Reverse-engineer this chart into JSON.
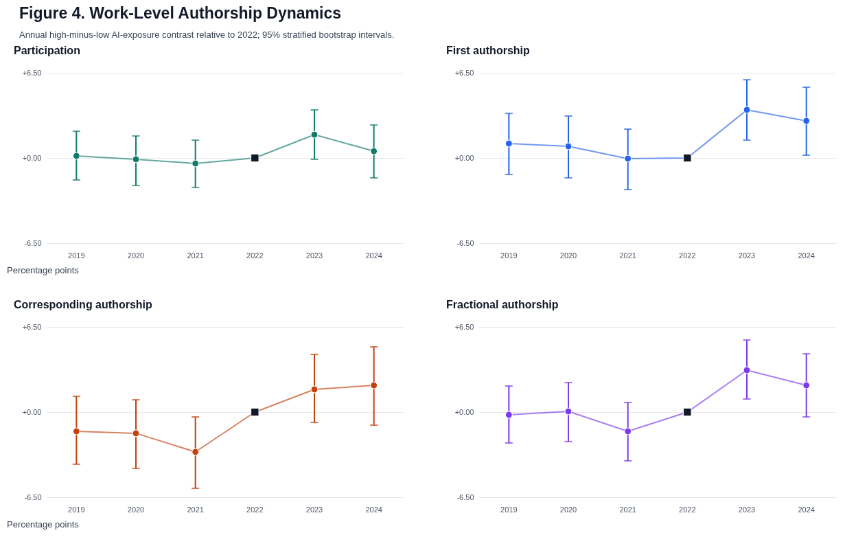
{
  "chart_data": [
    {
      "type": "line",
      "title": "Participation",
      "ylabel": "Percentage points",
      "annotations": [
        "Figure 4. Work-Level Authorship Dynamics",
        "Annual high-minus-low AI-exposure contrast relative to 2022; 95% stratified bootstrap intervals."
      ],
      "categories": [
        "2019",
        "2020",
        "2021",
        "2022",
        "2023",
        "2024"
      ],
      "ylim": [
        -6.5,
        6.5
      ],
      "yticks": [
        {
          "value": 6.5,
          "label": "+6.50"
        },
        {
          "value": 0,
          "label": "+0.00"
        },
        {
          "value": -6.5,
          "label": "-6.50"
        }
      ],
      "grid": "y",
      "marker": "circle",
      "series": [
        {
          "color": "#127a6b",
          "values": [
            0.16,
            -0.1,
            -0.42,
            0,
            1.78,
            0.52
          ],
          "errors": [
            [
              -1.68,
              2.04
            ],
            [
              -2.1,
              1.68
            ],
            [
              -2.25,
              1.36
            ],
            null,
            [
              -0.1,
              3.67
            ],
            [
              -1.52,
              2.52
            ]
          ]
        },
        {
          "type": "scatter",
          "marker": "square",
          "color": "#111827",
          "values": [
            null,
            null,
            null,
            0,
            null,
            null
          ]
        }
      ]
    },
    {
      "type": "line",
      "title": "First authorship",
      "categories": [
        "2019",
        "2020",
        "2021",
        "2022",
        "2023",
        "2024"
      ],
      "ylim": [
        -6.5,
        6.5
      ],
      "yticks": [
        {
          "value": 6.5,
          "label": "+6.50"
        },
        {
          "value": 0,
          "label": "+0.00"
        },
        {
          "value": -6.5,
          "label": "-6.50"
        }
      ],
      "grid": "y",
      "marker": "circle",
      "series": [
        {
          "color": "#2563eb",
          "values": [
            1.1,
            0.89,
            -0.05,
            0,
            3.67,
            2.83
          ],
          "errors": [
            [
              -1.26,
              3.4
            ],
            [
              -1.52,
              3.2
            ],
            [
              -2.41,
              2.2
            ],
            null,
            [
              1.36,
              5.97
            ],
            [
              0.21,
              5.4
            ]
          ]
        },
        {
          "type": "scatter",
          "marker": "square",
          "color": "#111827",
          "values": [
            null,
            null,
            null,
            0,
            null,
            null
          ]
        }
      ]
    },
    {
      "type": "line",
      "title": "Corresponding authorship",
      "ylabel": "Percentage points",
      "categories": [
        "2019",
        "2020",
        "2021",
        "2022",
        "2023",
        "2024"
      ],
      "ylim": [
        -6.5,
        6.5
      ],
      "yticks": [
        {
          "value": 6.5,
          "label": "+6.50"
        },
        {
          "value": 0,
          "label": "+0.00"
        },
        {
          "value": -6.5,
          "label": "-6.50"
        }
      ],
      "grid": "y",
      "marker": "circle",
      "series": [
        {
          "color": "#c2410c",
          "values": [
            -1.47,
            -1.62,
            -3.04,
            0,
            1.73,
            2.04
          ],
          "errors": [
            [
              -3.98,
              1.2
            ],
            [
              -4.3,
              0.94
            ],
            [
              -5.82,
              -0.37
            ],
            null,
            [
              -0.79,
              4.4
            ],
            [
              -1.0,
              4.98
            ]
          ]
        },
        {
          "type": "scatter",
          "marker": "square",
          "color": "#111827",
          "values": [
            null,
            null,
            null,
            0,
            null,
            null
          ]
        }
      ]
    },
    {
      "type": "line",
      "title": "Fractional authorship",
      "categories": [
        "2019",
        "2020",
        "2021",
        "2022",
        "2023",
        "2024"
      ],
      "ylim": [
        -6.5,
        6.5
      ],
      "yticks": [
        {
          "value": 6.5,
          "label": "+6.50"
        },
        {
          "value": 0,
          "label": "+0.00"
        },
        {
          "value": -6.5,
          "label": "-6.50"
        }
      ],
      "grid": "y",
      "marker": "circle",
      "series": [
        {
          "color": "#7c3aed",
          "values": [
            -0.21,
            0.05,
            -1.47,
            0,
            3.2,
            2.04
          ],
          "errors": [
            [
              -2.36,
              1.99
            ],
            [
              -2.25,
              2.25
            ],
            [
              -3.72,
              0.73
            ],
            null,
            [
              1.0,
              5.5
            ],
            [
              -0.37,
              4.45
            ]
          ]
        },
        {
          "type": "scatter",
          "marker": "square",
          "color": "#111827",
          "values": [
            null,
            null,
            null,
            0,
            null,
            null
          ]
        }
      ]
    }
  ]
}
